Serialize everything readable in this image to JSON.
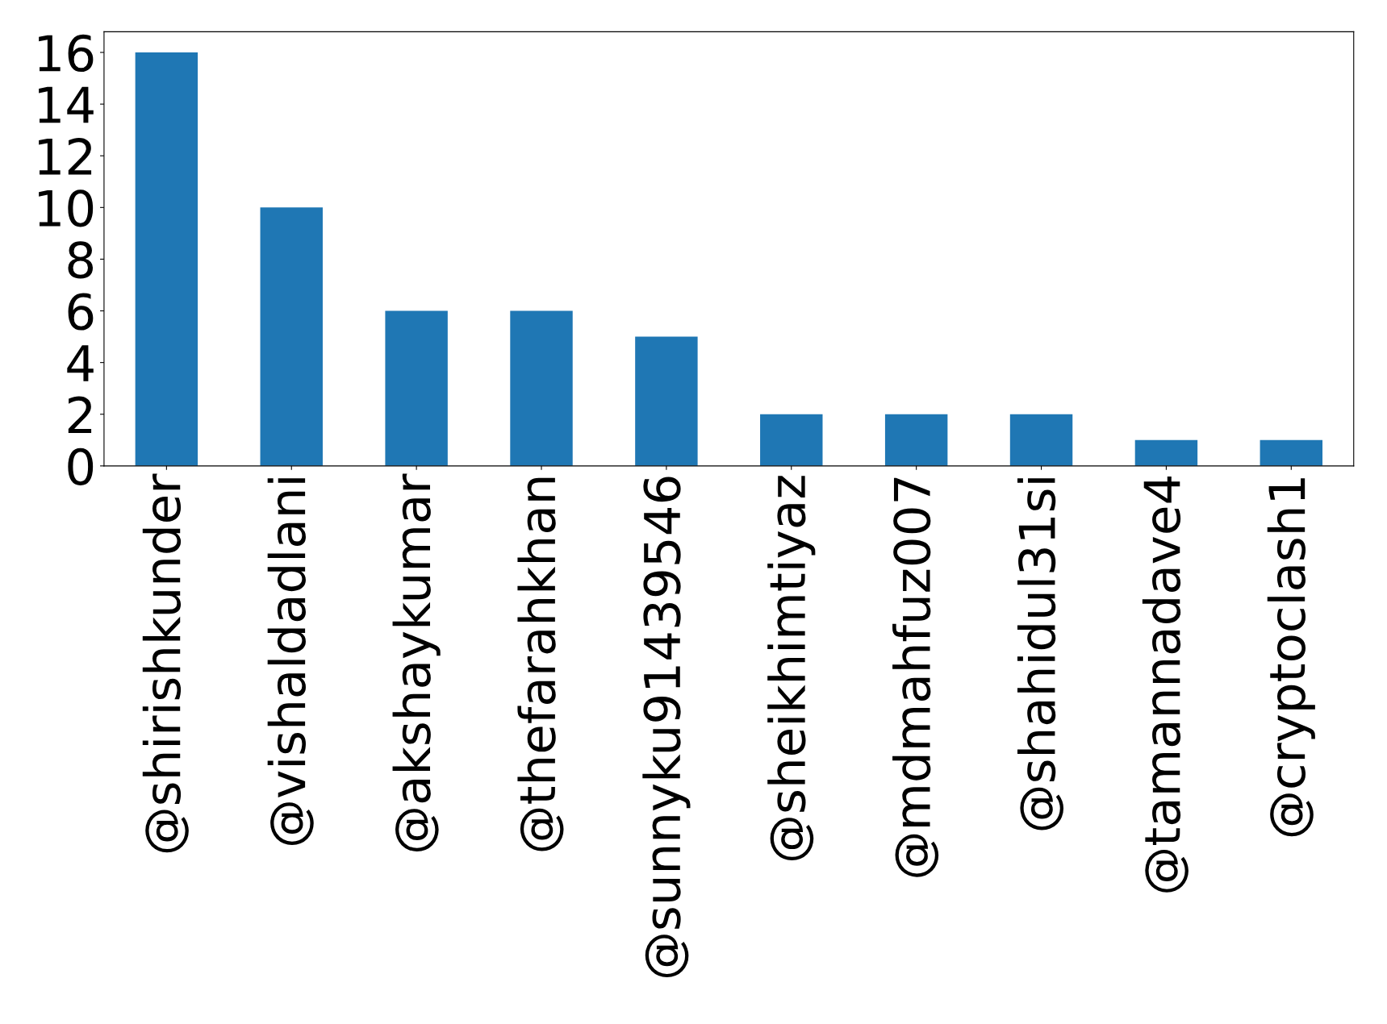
{
  "chart_data": {
    "type": "bar",
    "categories": [
      "@shirishkunder",
      "@vishaldadlani",
      "@akshaykumar",
      "@thefarahkhan",
      "@sunnyku91439546",
      "@sheikhimtiyaz",
      "@mdmahfuz007",
      "@shahidul31si",
      "@tamannadave4",
      "@cryptoclash1"
    ],
    "values": [
      16,
      10,
      6,
      6,
      5,
      2,
      2,
      2,
      1,
      1
    ],
    "color": "#1f77b4",
    "ylim": [
      0,
      16.8
    ],
    "yticks": [
      0,
      2,
      4,
      6,
      8,
      10,
      12,
      14,
      16
    ],
    "grid": false,
    "legend": false
  }
}
